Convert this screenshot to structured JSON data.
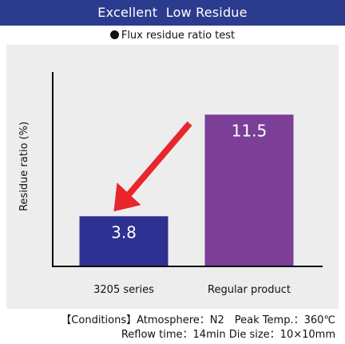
{
  "header": {
    "title": "Excellent  Low Residue"
  },
  "subtitle": {
    "text": "Flux residue ratio test"
  },
  "chart_data": {
    "type": "bar",
    "ylabel": "Residue ratio (%)",
    "xlabel": "",
    "categories": [
      "3205 series",
      "Regular product"
    ],
    "values": [
      3.8,
      11.5
    ],
    "value_labels": [
      "3.8",
      "11.5"
    ],
    "bar_colors": [
      "#2e3192",
      "#7b3f98"
    ],
    "ylim": [
      0,
      16
    ],
    "grid": false,
    "annotation": {
      "type": "arrow",
      "color": "#e8262c",
      "points_to": "3205 series"
    }
  },
  "conditions": {
    "line1": "【Conditions】Atmosphere：N2　Peak Temp.：360℃",
    "line2": "Reflow time：14min  Die size：10×10mm"
  }
}
